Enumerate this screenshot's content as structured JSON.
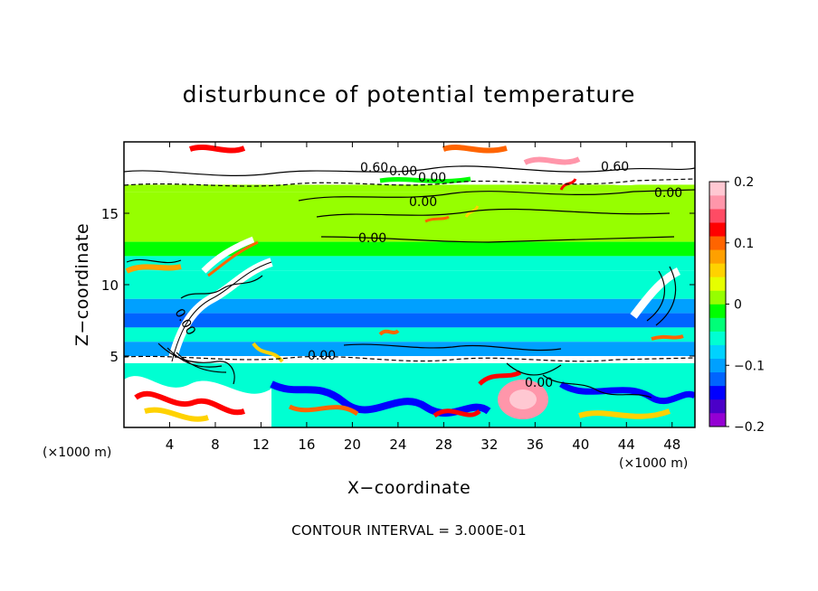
{
  "chart_data": {
    "type": "heatmap",
    "title": "disturbunce of potential temperature",
    "xlabel": "X−coordinate",
    "ylabel": "Z−coordinate",
    "x_unit": "(×1000 m)",
    "z_unit": "(×1000 m)",
    "xlim": [
      0,
      50
    ],
    "ylim": [
      0,
      20
    ],
    "x_ticks": [
      4,
      8,
      12,
      16,
      20,
      24,
      28,
      32,
      36,
      40,
      44,
      48
    ],
    "y_ticks": [
      5,
      10,
      15
    ],
    "colorbar": {
      "range": [
        -0.2,
        0.2
      ],
      "ticks": [
        0.2,
        0.1,
        0,
        -0.1,
        -0.2
      ],
      "tick_labels": [
        "0.2",
        "0.1",
        "0",
        "−0.1",
        "−0.2"
      ],
      "colors": [
        "#9400d3",
        "#4b00c8",
        "#0000ff",
        "#0064ff",
        "#00a0ff",
        "#00d2ff",
        "#00ffd2",
        "#00ff78",
        "#00ff00",
        "#96ff00",
        "#e6ff00",
        "#ffd200",
        "#ffa000",
        "#ff6400",
        "#ff0000",
        "#ff4b64",
        "#ff96aa",
        "#ffc8d2"
      ]
    },
    "contour_interval": "CONTOUR INTERVAL = 3.000E-01",
    "contour_labels": [
      "0.00",
      "0.00",
      "0.00",
      "0.00",
      "0.00",
      "0.00",
      "0.00",
      "0.00",
      "0.00",
      "0.00"
    ],
    "contour_labels_top": [
      "0.60",
      "0.60"
    ],
    "bands": [
      {
        "z0": 19.0,
        "z1": 20.0,
        "value": 0.3
      },
      {
        "z0": 17.0,
        "z1": 19.0,
        "value": 0.25
      },
      {
        "z0": 16.5,
        "z1": 17.0,
        "value": 0.0
      },
      {
        "z0": 13.0,
        "z1": 16.5,
        "value": 0.0
      },
      {
        "z0": 12.0,
        "z1": 13.0,
        "value": -0.02
      },
      {
        "z0": 11.0,
        "z1": 12.0,
        "value": -0.05
      },
      {
        "z0": 10.0,
        "z1": 11.0,
        "value": -0.06
      },
      {
        "z0": 9.0,
        "z1": 10.0,
        "value": -0.05
      },
      {
        "z0": 8.0,
        "z1": 9.0,
        "value": -0.1
      },
      {
        "z0": 7.0,
        "z1": 8.0,
        "value": -0.12
      },
      {
        "z0": 6.0,
        "z1": 7.0,
        "value": -0.06
      },
      {
        "z0": 5.0,
        "z1": 6.0,
        "value": -0.11
      },
      {
        "z0": 4.5,
        "z1": 5.0,
        "value": 0.3
      },
      {
        "z0": 0.0,
        "z1": 4.5,
        "value": -0.06
      }
    ]
  }
}
